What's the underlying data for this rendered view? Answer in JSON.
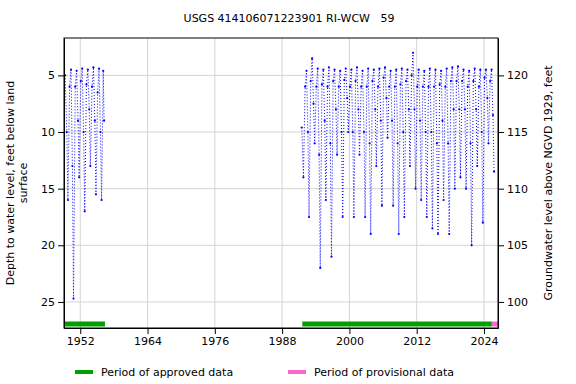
{
  "chart_data": {
    "type": "line",
    "title": "USGS 414106071223901 RI-WCW   59",
    "ylabel": [
      "Depth to water level, feet below land",
      "surface"
    ],
    "y2label": "Groundwater level above NGVD 1929, feet",
    "xlim": [
      1949.1,
      2026.5
    ],
    "xticks": [
      1952,
      1964,
      1976,
      1988,
      2000,
      2012,
      2024
    ],
    "ylim": [
      1.7,
      27.3
    ],
    "yticks": [
      5,
      10,
      15,
      20,
      25
    ],
    "y2lim": [
      123.3,
      97.7
    ],
    "y2ticks": [
      100,
      105,
      110,
      115,
      120
    ],
    "grid": true,
    "legend": "bottom",
    "x": [
      1949.3,
      1949.6,
      1949.8,
      1950.1,
      1950.35,
      1950.6,
      1950.8,
      1951.1,
      1951.35,
      1951.6,
      1951.8,
      1952.1,
      1952.35,
      1952.6,
      1952.8,
      1953.1,
      1953.35,
      1953.6,
      1953.8,
      1954.1,
      1954.35,
      1954.6,
      1954.8,
      1955.1,
      1955.35,
      1955.6,
      1955.8,
      1956.1,
      1956.25,
      1970,
      1991.5,
      1991.8,
      1992.1,
      1992.35,
      1992.6,
      1992.8,
      1993.1,
      1993.35,
      1993.6,
      1993.8,
      1994.1,
      1994.35,
      1994.6,
      1994.8,
      1995.1,
      1995.35,
      1995.6,
      1995.8,
      1996.1,
      1996.35,
      1996.6,
      1996.8,
      1997.1,
      1997.35,
      1997.6,
      1997.8,
      1998.1,
      1998.35,
      1998.6,
      1998.8,
      1999.1,
      1999.35,
      1999.6,
      1999.8,
      2000.1,
      2000.35,
      2000.6,
      2000.8,
      2001.1,
      2001.35,
      2001.6,
      2001.8,
      2002.1,
      2002.35,
      2002.6,
      2002.8,
      2003.1,
      2003.35,
      2003.6,
      2003.8,
      2004.1,
      2004.35,
      2004.6,
      2004.8,
      2005.1,
      2005.35,
      2005.6,
      2005.8,
      2006.1,
      2006.35,
      2006.6,
      2006.8,
      2007.1,
      2007.35,
      2007.6,
      2007.8,
      2008.1,
      2008.35,
      2008.6,
      2008.8,
      2009.1,
      2009.35,
      2009.6,
      2009.8,
      2010.1,
      2010.35,
      2010.6,
      2010.8,
      2011.1,
      2011.35,
      2011.6,
      2011.8,
      2012.1,
      2012.35,
      2012.6,
      2012.8,
      2013.1,
      2013.35,
      2013.6,
      2013.8,
      2014.1,
      2014.35,
      2014.6,
      2014.8,
      2015.1,
      2015.35,
      2015.6,
      2015.8,
      2016.1,
      2016.35,
      2016.6,
      2016.8,
      2017.1,
      2017.35,
      2017.6,
      2017.8,
      2018.1,
      2018.35,
      2018.6,
      2018.8,
      2019.1,
      2019.35,
      2019.6,
      2019.8,
      2020.1,
      2020.35,
      2020.6,
      2020.8,
      2021.1,
      2021.35,
      2021.6,
      2021.8,
      2022.1,
      2022.35,
      2022.6,
      2022.8,
      2023.1,
      2023.35,
      2023.6,
      2023.8,
      2024.1,
      2024.35,
      2024.6,
      2024.8,
      2025.1,
      2025.35,
      2025.6,
      2025.8
    ],
    "series": [
      {
        "name": "Depth to water level",
        "color": "#0000ff",
        "marker": "dot",
        "line_style": "dotted",
        "values": [
          5.0,
          10,
          16,
          6,
          4.5,
          13,
          24.7,
          6,
          4.6,
          9,
          14,
          5.5,
          4.4,
          10,
          17,
          5.8,
          4.5,
          8,
          13,
          6,
          4.3,
          9,
          15.5,
          6.5,
          4.4,
          10,
          16,
          4.6,
          9,
          null,
          9.6,
          14,
          6,
          4.6,
          10,
          17.5,
          5.5,
          3.5,
          7.5,
          11,
          6,
          4.4,
          12,
          22,
          5.8,
          4.5,
          9,
          16,
          6,
          4.3,
          11,
          21,
          5.5,
          4.5,
          8,
          12,
          6,
          4.6,
          10,
          17.5,
          5.4,
          4.4,
          7,
          10,
          6,
          4.5,
          10,
          17.5,
          5.5,
          4.3,
          8,
          12,
          6,
          4.6,
          10,
          17.5,
          6,
          4.4,
          11,
          19,
          5.5,
          4.5,
          8,
          13,
          6,
          4.4,
          9,
          16.5,
          5.2,
          4.3,
          7,
          10.5,
          6,
          4.6,
          9,
          16.5,
          6,
          4.5,
          11,
          19,
          5.8,
          4.4,
          10,
          17.5,
          5.5,
          4.5,
          8,
          13,
          5,
          3.0,
          8,
          15,
          6,
          4.5,
          9,
          16,
          6,
          4.6,
          10,
          17.5,
          6,
          4.4,
          10,
          18.5,
          6,
          4.5,
          11,
          19,
          5.8,
          4.6,
          9,
          16,
          6,
          4.4,
          11,
          19,
          5.5,
          4.3,
          8,
          15,
          5.5,
          4.2,
          8,
          14,
          5.5,
          4.5,
          8,
          15,
          6,
          4.6,
          11,
          20,
          5.5,
          4.4,
          8,
          13,
          6,
          4.5,
          10,
          18,
          5.2,
          4.5,
          7,
          11,
          5.5,
          4.5,
          8.5,
          13.5
        ]
      }
    ],
    "periods": [
      {
        "name": "Period of approved data",
        "color": "#00a000",
        "ranges": [
          [
            1949.2,
            1956.4
          ],
          [
            1991.6,
            2025.4
          ]
        ]
      },
      {
        "name": "Period of provisional data",
        "color": "#ff66cc",
        "ranges": [
          [
            2025.4,
            2026.5
          ]
        ]
      }
    ]
  }
}
